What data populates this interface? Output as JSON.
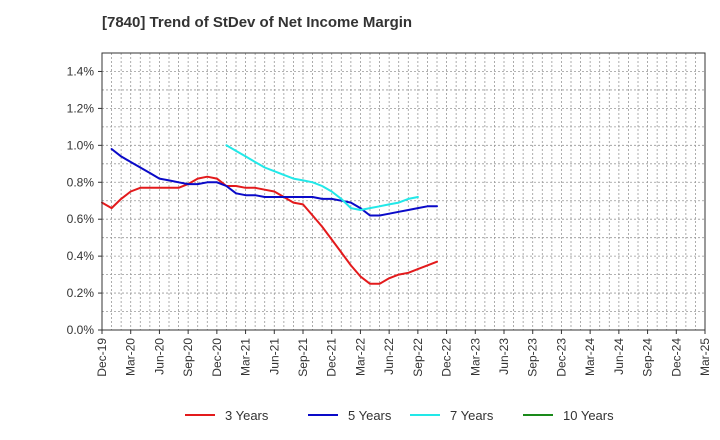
{
  "chart_data": {
    "type": "line",
    "title": "[7840]  Trend of StDev of Net Income Margin",
    "xlabel": "",
    "ylabel": "",
    "x_ticks": [
      "Dec-19",
      "Mar-20",
      "Jun-20",
      "Sep-20",
      "Dec-20",
      "Mar-21",
      "Jun-21",
      "Sep-21",
      "Dec-21",
      "Mar-22",
      "Jun-22",
      "Sep-22",
      "Dec-22",
      "Mar-23",
      "Jun-23",
      "Sep-23",
      "Dec-23",
      "Mar-24",
      "Jun-24",
      "Sep-24",
      "Dec-24",
      "Mar-25"
    ],
    "y_ticks": [
      "0.0%",
      "0.2%",
      "0.4%",
      "0.6%",
      "0.8%",
      "1.0%",
      "1.2%",
      "1.4%"
    ],
    "ylim": [
      0,
      1.5
    ],
    "y_unit": "%",
    "grid": true,
    "legend_position": "bottom",
    "series": [
      {
        "name": "3 Years",
        "color": "#e31a1c",
        "start_index": 0,
        "values": [
          0.69,
          0.66,
          0.71,
          0.75,
          0.77,
          0.77,
          0.77,
          0.77,
          0.77,
          0.79,
          0.82,
          0.83,
          0.82,
          0.78,
          0.78,
          0.77,
          0.77,
          0.76,
          0.75,
          0.72,
          0.69,
          0.68,
          0.62,
          0.56,
          0.49,
          0.42,
          0.35,
          0.29,
          0.25,
          0.25,
          0.28,
          0.3,
          0.31,
          0.33,
          0.35,
          0.37
        ]
      },
      {
        "name": "5 Years",
        "color": "#0a0ac8",
        "start_index": 1,
        "values": [
          0.98,
          0.94,
          0.91,
          0.88,
          0.85,
          0.82,
          0.81,
          0.8,
          0.79,
          0.79,
          0.8,
          0.8,
          0.78,
          0.74,
          0.73,
          0.73,
          0.72,
          0.72,
          0.72,
          0.72,
          0.72,
          0.72,
          0.71,
          0.71,
          0.7,
          0.69,
          0.66,
          0.62,
          0.62,
          0.63,
          0.64,
          0.65,
          0.66,
          0.67,
          0.67
        ]
      },
      {
        "name": "7 Years",
        "color": "#22e8e8",
        "start_index": 13,
        "values": [
          1.0,
          0.97,
          0.94,
          0.91,
          0.88,
          0.86,
          0.84,
          0.82,
          0.81,
          0.8,
          0.78,
          0.75,
          0.71,
          0.66,
          0.65,
          0.66,
          0.67,
          0.68,
          0.69,
          0.71,
          0.72
        ]
      },
      {
        "name": "10 Years",
        "color": "#1a8a1a",
        "start_index": 0,
        "values": []
      }
    ]
  }
}
